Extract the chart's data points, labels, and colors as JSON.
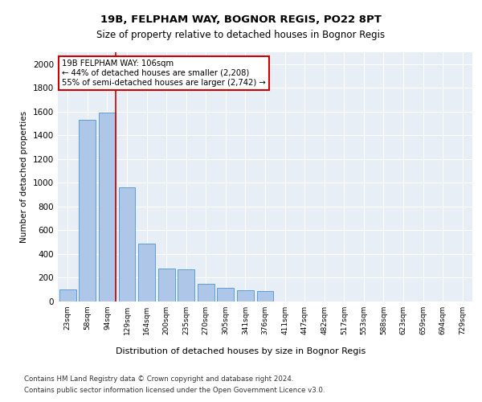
{
  "title1": "19B, FELPHAM WAY, BOGNOR REGIS, PO22 8PT",
  "title2": "Size of property relative to detached houses in Bognor Regis",
  "xlabel": "Distribution of detached houses by size in Bognor Regis",
  "ylabel": "Number of detached properties",
  "bar_labels": [
    "23sqm",
    "58sqm",
    "94sqm",
    "129sqm",
    "164sqm",
    "200sqm",
    "235sqm",
    "270sqm",
    "305sqm",
    "341sqm",
    "376sqm",
    "411sqm",
    "447sqm",
    "482sqm",
    "517sqm",
    "553sqm",
    "588sqm",
    "623sqm",
    "659sqm",
    "694sqm",
    "729sqm"
  ],
  "bar_values": [
    100,
    1530,
    1590,
    960,
    490,
    280,
    270,
    150,
    115,
    95,
    85,
    0,
    0,
    0,
    0,
    0,
    0,
    0,
    0,
    0,
    0
  ],
  "bar_color": "#aec6e8",
  "bar_edge_color": "#5a9fd4",
  "background_color": "#e8eef5",
  "grid_color": "#ffffff",
  "annotation_line1": "19B FELPHAM WAY: 106sqm",
  "annotation_line2": "← 44% of detached houses are smaller (2,208)",
  "annotation_line3": "55% of semi-detached houses are larger (2,742) →",
  "annotation_box_color": "#ffffff",
  "annotation_box_edge": "#cc0000",
  "vline_color": "#cc0000",
  "vline_pos": 2.43,
  "ylim": [
    0,
    2100
  ],
  "yticks": [
    0,
    200,
    400,
    600,
    800,
    1000,
    1200,
    1400,
    1600,
    1800,
    2000
  ],
  "footnote1": "Contains HM Land Registry data © Crown copyright and database right 2024.",
  "footnote2": "Contains public sector information licensed under the Open Government Licence v3.0."
}
